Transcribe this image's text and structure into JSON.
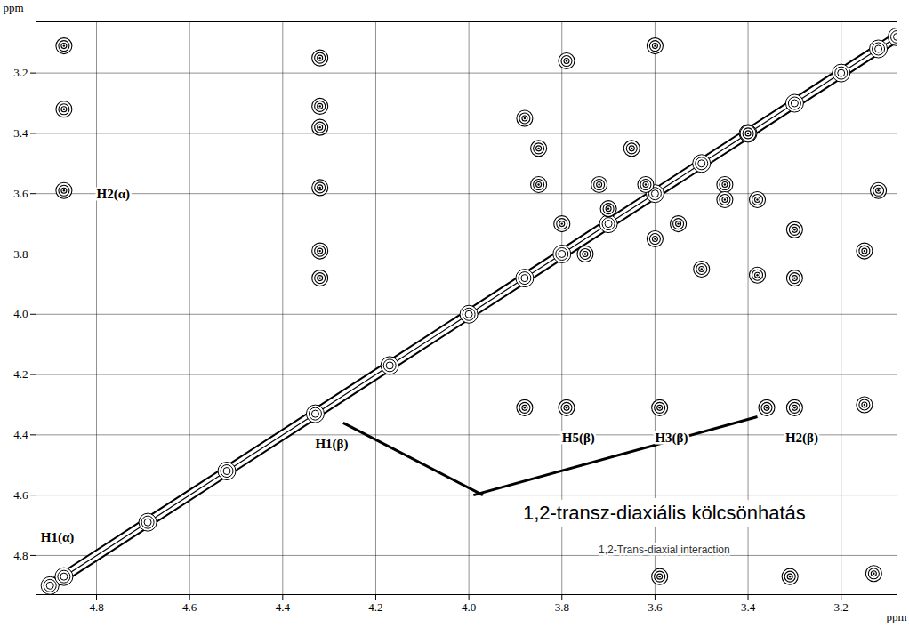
{
  "chart_data": {
    "type": "scatter",
    "x_label": "ppm",
    "y_label": "ppm",
    "xlim": [
      4.93,
      3.08
    ],
    "ylim": [
      4.93,
      3.03
    ],
    "xticks": [
      4.8,
      4.6,
      4.4,
      4.2,
      {
        "value": 4,
        "label": "4.0"
      },
      3.8,
      3.6,
      3.4,
      3.2
    ],
    "yticks": [
      3.2,
      3.4,
      3.6,
      3.8,
      {
        "value": 4,
        "label": "4.0"
      },
      4.2,
      4.4,
      4.6,
      4.8
    ],
    "grid": true,
    "color": "#000000",
    "peaks": {
      "x": [
        4.87,
        4.87,
        4.87,
        4.32,
        4.32,
        4.32,
        4.32,
        4.32,
        4.32,
        3.79,
        3.6,
        3.88,
        3.79,
        3.59,
        3.36,
        3.3,
        3.15,
        3.59,
        3.31,
        3.13,
        3.12,
        3.15,
        3.88,
        3.85,
        3.72,
        3.62,
        3.45,
        3.85,
        3.7,
        3.4,
        3.3,
        3.5,
        3.55,
        3.45,
        3.38,
        3.3,
        3.38,
        3.65,
        3.6,
        3.8,
        3.75
      ],
      "y": [
        3.11,
        3.32,
        3.59,
        3.15,
        3.31,
        3.38,
        3.58,
        3.79,
        3.88,
        3.16,
        3.11,
        4.31,
        4.31,
        4.31,
        4.31,
        4.31,
        4.3,
        4.87,
        4.87,
        4.86,
        3.59,
        3.79,
        3.35,
        3.57,
        3.57,
        3.57,
        3.57,
        3.45,
        3.65,
        3.4,
        3.72,
        3.85,
        3.7,
        3.62,
        3.87,
        3.88,
        3.62,
        3.45,
        3.75,
        3.7,
        3.8
      ]
    },
    "diagonal": {
      "x": [
        4.9,
        4.87,
        4.69,
        4.52,
        4.33,
        4.17,
        4.0,
        3.88,
        3.8,
        3.7,
        3.6,
        3.5,
        3.4,
        3.3,
        3.2,
        3.12,
        3.08
      ],
      "y": [
        4.9,
        4.87,
        4.69,
        4.52,
        4.33,
        4.17,
        4.0,
        3.88,
        3.8,
        3.7,
        3.6,
        3.5,
        3.4,
        3.3,
        3.2,
        3.12,
        3.08
      ]
    },
    "peak_labels": [
      {
        "text": "H2(α)",
        "x": 4.8,
        "y": 3.6
      },
      {
        "text": "H1(β)",
        "x": 4.33,
        "y": 4.43
      },
      {
        "text": "H1(α)",
        "x": 4.92,
        "y": 4.74
      },
      {
        "text": "H5(β)",
        "x": 3.8,
        "y": 4.41
      },
      {
        "text": "H3(β)",
        "x": 3.6,
        "y": 4.41
      },
      {
        "text": "H2(β)",
        "x": 3.32,
        "y": 4.41
      }
    ],
    "annotations": [
      {
        "text": "1,2-transz-diaxiális kölcsönhatás",
        "x": 3.58,
        "y": 4.66
      },
      {
        "text": "1,2-Trans-diaxial interaction",
        "x": 3.58,
        "y": 4.78
      }
    ],
    "arrows": [
      {
        "x1": 4.27,
        "y1": 4.36,
        "x2": 3.97,
        "y2": 4.6
      },
      {
        "x1": 3.99,
        "y1": 4.6,
        "x2": 3.38,
        "y2": 4.34
      }
    ]
  }
}
